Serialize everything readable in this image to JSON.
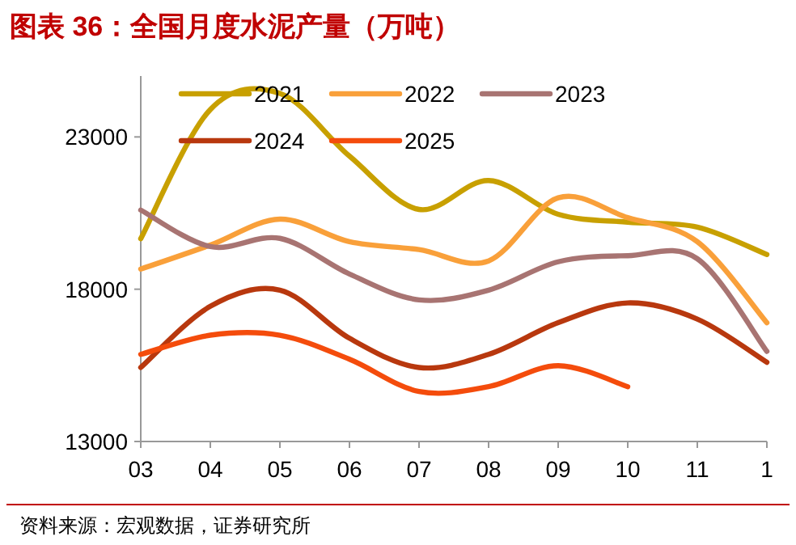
{
  "chart_data": {
    "type": "line",
    "title": "图表 36：全国月度水泥产量（万吨）",
    "categories": [
      "03",
      "04",
      "05",
      "06",
      "07",
      "08",
      "09",
      "10",
      "11",
      "1"
    ],
    "series": [
      {
        "name": "2021",
        "color": "#c8a000",
        "values": [
          19660,
          23900,
          24430,
          22370,
          20620,
          21570,
          20460,
          20200,
          20040,
          19140
        ]
      },
      {
        "name": "2022",
        "color": "#f9a03a",
        "values": [
          18660,
          19450,
          20300,
          19560,
          19300,
          18930,
          21000,
          20350,
          19560,
          16900
        ]
      },
      {
        "name": "2023",
        "color": "#a87472",
        "values": [
          20600,
          19400,
          19670,
          18500,
          17650,
          17970,
          18900,
          19100,
          19000,
          15960
        ]
      },
      {
        "name": "2024",
        "color": "#b8380e",
        "values": [
          15430,
          17440,
          17970,
          16390,
          15430,
          15860,
          16900,
          17550,
          17020,
          15600
        ]
      },
      {
        "name": "2025",
        "color": "#f44c0c",
        "values": [
          15860,
          16490,
          16490,
          15700,
          14640,
          14800,
          15490,
          14800,
          null,
          null
        ]
      }
    ],
    "ylim": [
      13000,
      25000
    ],
    "yticks": [
      13000,
      18000,
      23000
    ],
    "grid": false,
    "legend": "top",
    "annotations": [
      "资料来源：宏观数据，证券研究所"
    ]
  }
}
